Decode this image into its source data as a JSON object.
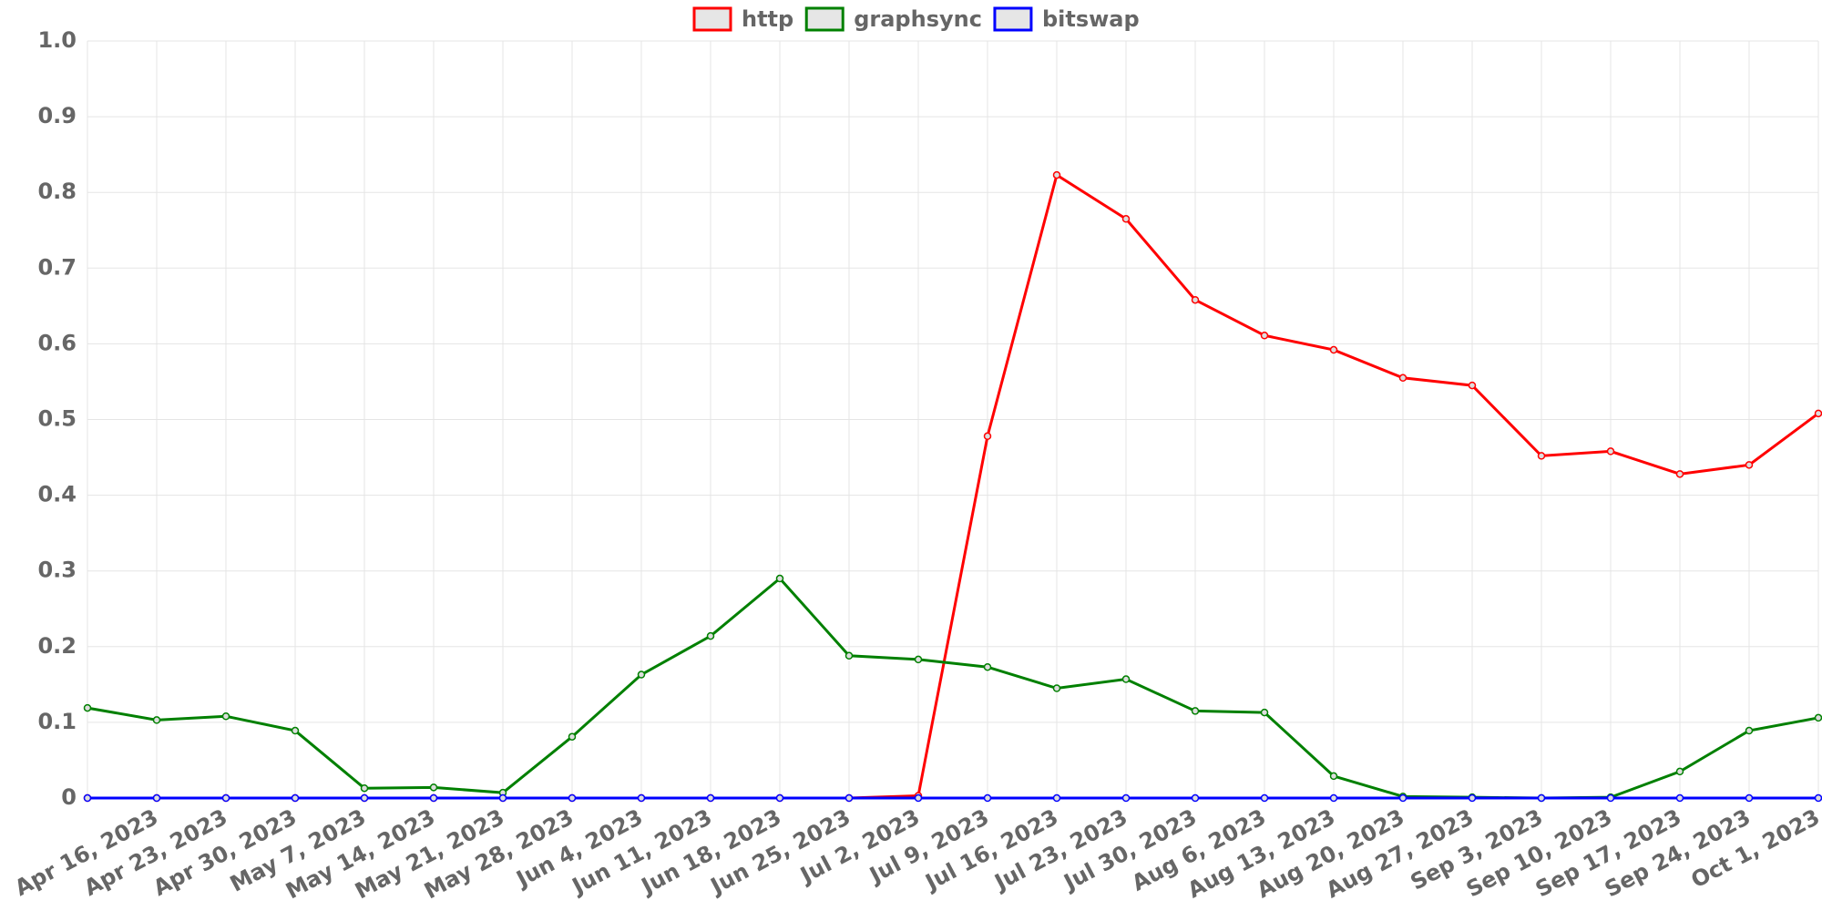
{
  "chart_data": {
    "type": "line",
    "categories": [
      null,
      "Apr 16, 2023",
      "Apr 23, 2023",
      "Apr 30, 2023",
      "May 7, 2023",
      "May 14, 2023",
      "May 21, 2023",
      "May 28, 2023",
      "Jun 4, 2023",
      "Jun 11, 2023",
      "Jun 18, 2023",
      "Jun 25, 2023",
      "Jul 2, 2023",
      "Jul 9, 2023",
      "Jul 16, 2023",
      "Jul 23, 2023",
      "Jul 30, 2023",
      "Aug 6, 2023",
      "Aug 13, 2023",
      "Aug 20, 2023",
      "Aug 27, 2023",
      "Sep 3, 2023",
      "Sep 10, 2023",
      "Sep 17, 2023",
      "Sep 24, 2023",
      "Oct 1, 2023"
    ],
    "series": [
      {
        "name": "http",
        "color": "#ff0000",
        "values": [
          0,
          0,
          0,
          0,
          0,
          0,
          0,
          0,
          0,
          0,
          0,
          0,
          0.003,
          0.478,
          0.823,
          0.765,
          0.658,
          0.611,
          0.592,
          0.555,
          0.545,
          0.452,
          0.458,
          0.428,
          0.44,
          0.508
        ]
      },
      {
        "name": "graphsync",
        "color": "#008000",
        "values": [
          0.119,
          0.103,
          0.108,
          0.089,
          0.013,
          0.014,
          0.007,
          0.081,
          0.163,
          0.214,
          0.29,
          0.188,
          0.183,
          0.173,
          0.145,
          0.157,
          0.115,
          0.113,
          0.029,
          0.002,
          0.001,
          0,
          0.001,
          0.035,
          0.089,
          0.106
        ]
      },
      {
        "name": "bitswap",
        "color": "#0000ff",
        "values": [
          0,
          0,
          0,
          0,
          0,
          0,
          0,
          0,
          0,
          0,
          0,
          0,
          0,
          0,
          0,
          0,
          0,
          0,
          0,
          0,
          0,
          0,
          0,
          0,
          0,
          0
        ]
      }
    ],
    "ylim": [
      0,
      1
    ],
    "yticks": [
      0,
      0.1,
      0.2,
      0.3,
      0.4,
      0.5,
      0.6,
      0.7,
      0.8,
      0.9,
      {
        "value": 1,
        "label": "1.0"
      }
    ],
    "grid": true,
    "legend": "top"
  }
}
